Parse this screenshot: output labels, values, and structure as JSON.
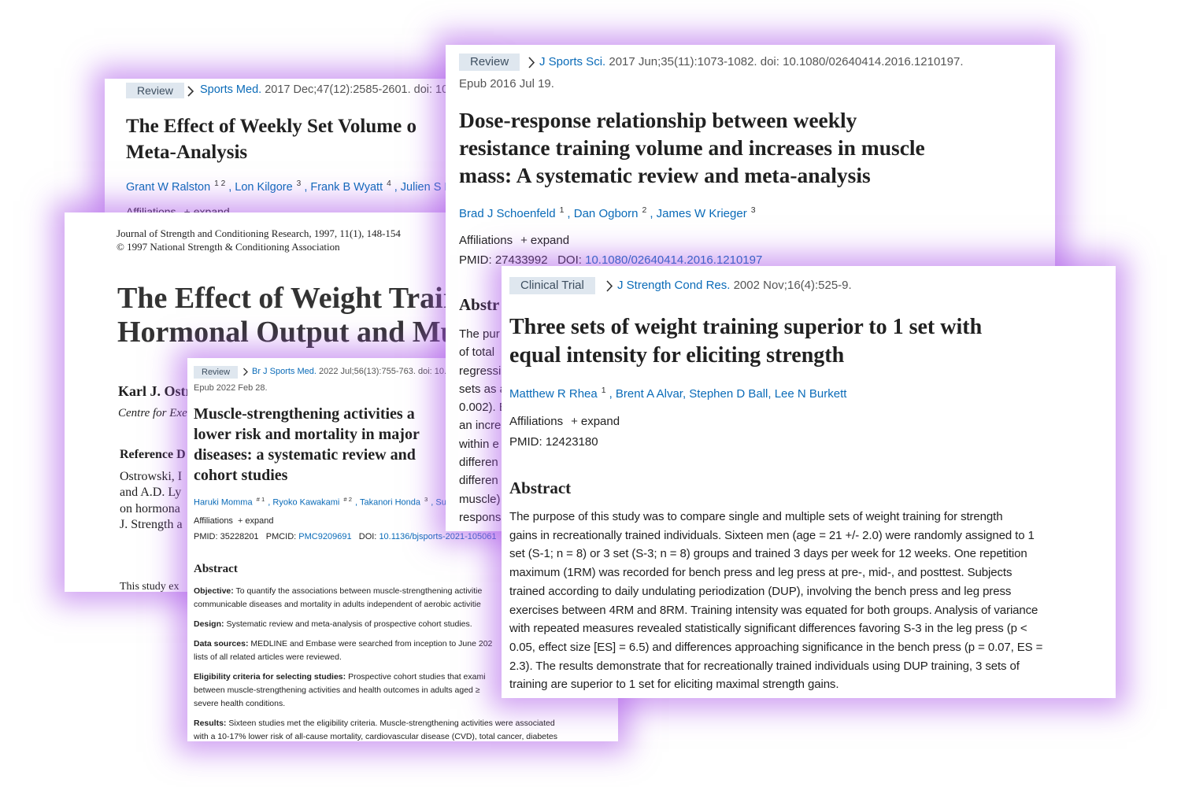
{
  "ralston": {
    "tag": "Review",
    "journal": "Sports Med.",
    "citation": "2017 Dec;47(12):2585-2601. doi: 10.1",
    "title": [
      "The Effect of Weekly Set Volume o",
      "Meta-Analysis"
    ],
    "authors": [
      {
        "name": "Grant W Ralston",
        "sup": "1 2"
      },
      {
        "name": ", Lon Kilgore",
        "sup": "3"
      },
      {
        "name": ", Frank B Wyatt",
        "sup": "4"
      },
      {
        "name": ", Julien S Ba"
      }
    ],
    "affiliations": "Affiliations",
    "expand": "expand"
  },
  "ostrowski": {
    "journal": [
      "Journal of Strength and Conditioning Research, 1997, 11(1), 148-154",
      "© 1997 National Strength & Conditioning Association"
    ],
    "title": [
      "The Effect of Weight Trair",
      "Hormonal Output and Mu"
    ],
    "author": "Karl J. Ostr",
    "affiliation": "Centre for Exe",
    "reference_heading": "Reference D",
    "reference": [
      "Ostrowski, I",
      "and A.D. Ly",
      "on hormona",
      "J. Strength a"
    ],
    "body": "This study ex"
  },
  "schoenfeld": {
    "tag": "Review",
    "journal": "J Sports Sci.",
    "citation": "2017 Jun;35(11):1073-1082. doi: 10.1080/02640414.2016.1210197.",
    "epub": "Epub 2016 Jul 19.",
    "title": [
      "Dose-response relationship between weekly",
      "resistance training volume and increases in muscle",
      "mass: A systematic review and meta-analysis"
    ],
    "authors": [
      {
        "name": "Brad J Schoenfeld",
        "sup": "1"
      },
      {
        "name": ", Dan Ogborn",
        "sup": "2"
      },
      {
        "name": ", James W Krieger",
        "sup": "3"
      }
    ],
    "affiliations": "Affiliations",
    "expand": "expand",
    "pmid": "PMID: 27433992",
    "doi_label": "DOI:",
    "doi": "10.1080/02640414.2016.1210197",
    "abstract_heading": "Abstr",
    "abstract": [
      "The pur",
      "of total",
      "regressi",
      "sets as a",
      "0.002). E",
      "an incre",
      "within e",
      "differen",
      "differen",
      "muscle)",
      "respons"
    ]
  },
  "momma": {
    "tag": "Review",
    "journal": "Br J Sports Med.",
    "citation": "2022 Jul;56(13):755-763. doi: 10.1",
    "epub": "Epub 2022 Feb 28.",
    "title": [
      "Muscle-strengthening activities a",
      "lower risk and mortality in major",
      "diseases: a systematic review and",
      "cohort studies"
    ],
    "authors": [
      {
        "name": "Haruki Momma",
        "sup": "# 1"
      },
      {
        "name": ", Ryoko Kawakami",
        "sup": "# 2"
      },
      {
        "name": ", Takanori Honda",
        "sup": "3"
      },
      {
        "name": ", Su"
      }
    ],
    "affiliations": "Affiliations",
    "expand": "expand",
    "pmid": "PMID: 35228201",
    "pmcid_label": "PMCID:",
    "pmcid": "PMC9209691",
    "doi_label": "DOI:",
    "doi": "10.1136/bjsports-2021-105061",
    "abstract_heading": "Abstract",
    "abstract": [
      {
        "label": "Objective:",
        "lines": [
          "To quantify the associations between muscle-strengthening activitie",
          "communicable diseases and mortality in adults independent of aerobic activitie"
        ]
      },
      {
        "label": "Design:",
        "lines": [
          "Systematic review and meta-analysis of prospective cohort studies."
        ]
      },
      {
        "label": "Data sources:",
        "lines": [
          "MEDLINE and Embase were searched from inception to June 202",
          "lists of all related articles were reviewed."
        ]
      },
      {
        "label": "Eligibility criteria for selecting studies:",
        "lines": [
          "Prospective cohort studies that exami",
          "between muscle-strengthening activities and health outcomes in adults aged ≥",
          "severe health conditions."
        ]
      },
      {
        "label": "Results:",
        "lines": [
          "Sixteen studies met the eligibility criteria. Muscle-strengthening activities were associated",
          "with a 10-17% lower risk of all-cause mortality, cardiovascular disease (CVD), total cancer, diabetes"
        ]
      }
    ]
  },
  "rhea": {
    "tag": "Clinical Trial",
    "journal": "J Strength Cond Res.",
    "citation": "2002 Nov;16(4):525-9.",
    "title": [
      "Three sets of weight training superior to 1 set with",
      "equal intensity for eliciting strength"
    ],
    "authors": [
      {
        "name": "Matthew R Rhea",
        "sup": "1"
      },
      {
        "name": ", Brent A Alvar"
      },
      {
        "name": ", Stephen D Ball"
      },
      {
        "name": ", Lee N Burkett"
      }
    ],
    "affiliations": "Affiliations",
    "expand": "expand",
    "pmid": "PMID: 12423180",
    "abstract_heading": "Abstract",
    "abstract": [
      "The purpose of this study was to compare single and multiple sets of weight training for strength",
      "gains in recreationally trained individuals. Sixteen men (age = 21 +/- 2.0) were randomly assigned to 1",
      "set (S-1; n = 8) or 3 set (S-3; n = 8) groups and trained 3 days per week for 12 weeks. One repetition",
      "maximum (1RM) was recorded for bench press and leg press at pre-, mid-, and posttest. Subjects",
      "trained according to daily undulating periodization (DUP), involving the bench press and leg press",
      "exercises between 4RM and 8RM. Training intensity was equated for both groups. Analysis of variance",
      "with repeated measures revealed statistically significant differences favoring S-3 in the leg press (p <",
      "0.05, effect size [ES] = 6.5) and differences approaching significance in the bench press (p = 0.07, ES =",
      "2.3). The results demonstrate that for recreationally trained individuals using DUP training, 3 sets of",
      "training are superior to 1 set for eliciting maximal strength gains."
    ]
  }
}
